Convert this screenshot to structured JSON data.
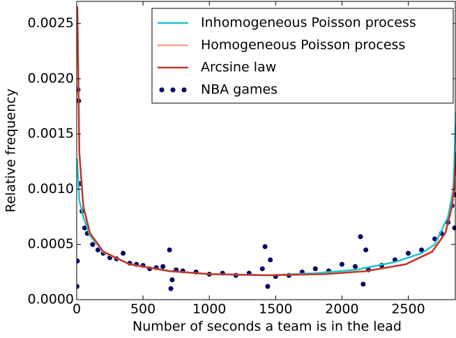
{
  "chart_data": {
    "type": "line",
    "xlabel": "Number of seconds a team is in the lead",
    "ylabel": "Relative frequency",
    "xlim": [
      0,
      2860
    ],
    "ylim": [
      0,
      0.0027
    ],
    "xticks": [
      0,
      500,
      1000,
      1500,
      2000,
      2500
    ],
    "yticks": [
      {
        "value": 0,
        "label": "0.0000"
      },
      {
        "value": 0.0005,
        "label": "0.0005"
      },
      {
        "value": 0.001,
        "label": "0.0010"
      },
      {
        "value": 0.0015,
        "label": "0.0015"
      },
      {
        "value": 0.002,
        "label": "0.0020"
      },
      {
        "value": 0.0025,
        "label": "0.0025"
      }
    ],
    "legend": "upper right",
    "series": [
      {
        "name": "Inhomogeneous Poisson process",
        "color": "#1fc3d0",
        "type": "line",
        "x": [
          2,
          20,
          50,
          100,
          200,
          400,
          700,
          1000,
          1440,
          1800,
          2100,
          2400,
          2600,
          2700,
          2800,
          2840,
          2860
        ],
        "values": [
          0.00128,
          0.0009,
          0.00075,
          0.00058,
          0.00043,
          0.00032,
          0.00026,
          0.00023,
          0.00022,
          0.00024,
          0.00027,
          0.00034,
          0.00042,
          0.0005,
          0.00075,
          0.001,
          0.0017
        ]
      },
      {
        "name": "Homogeneous Poisson process",
        "color": "#f4a582",
        "type": "line",
        "x": [
          5,
          20,
          50,
          100,
          200,
          400,
          700,
          1000,
          1440,
          1880,
          2180,
          2480,
          2680,
          2780,
          2830,
          2850,
          2860
        ],
        "values": [
          0.00262,
          0.00132,
          0.00084,
          0.0006,
          0.00043,
          0.00032,
          0.000258,
          0.000232,
          0.000221,
          0.000232,
          0.000258,
          0.00032,
          0.00043,
          0.0006,
          0.00084,
          0.00108,
          0.00132
        ]
      },
      {
        "name": "Arcsine law",
        "color": "#c0392b",
        "type": "line",
        "x": [
          5,
          20,
          50,
          100,
          200,
          400,
          700,
          1000,
          1440,
          1880,
          2180,
          2480,
          2680,
          2780,
          2830,
          2845,
          2855,
          2860
        ],
        "values": [
          0.002655,
          0.001331,
          0.000846,
          0.000604,
          0.000435,
          0.00032,
          0.000258,
          0.000232,
          0.000221,
          0.000232,
          0.000258,
          0.00032,
          0.000435,
          0.000604,
          0.000846,
          0.001009,
          0.001191,
          0.001331
        ]
      },
      {
        "name": "NBA games",
        "color": "#00008b",
        "type": "scatter",
        "x": [
          2,
          5,
          10,
          15,
          25,
          40,
          60,
          80,
          120,
          160,
          200,
          250,
          300,
          350,
          400,
          450,
          500,
          550,
          600,
          650,
          700,
          710,
          720,
          750,
          800,
          900,
          1000,
          1100,
          1200,
          1300,
          1400,
          1420,
          1440,
          1460,
          1500,
          1600,
          1700,
          1800,
          1900,
          2000,
          2100,
          2140,
          2160,
          2180,
          2200,
          2300,
          2400,
          2500,
          2600,
          2700,
          2750,
          2800,
          2830,
          2850,
          2855
        ],
        "values": [
          0.00012,
          0.00035,
          0.0019,
          0.0018,
          0.00105,
          0.0008,
          0.00065,
          0.0006,
          0.0005,
          0.00045,
          0.00042,
          0.00038,
          0.00037,
          0.00042,
          0.00033,
          0.00032,
          0.00031,
          0.00028,
          0.00029,
          0.0003,
          0.00045,
          0.0001,
          0.00018,
          0.00027,
          0.00026,
          0.00025,
          0.00023,
          0.00024,
          0.00022,
          0.00024,
          0.00028,
          0.00048,
          0.00012,
          0.00036,
          0.00021,
          0.00022,
          0.00025,
          0.00028,
          0.00026,
          0.00032,
          0.0003,
          0.00057,
          0.00014,
          0.00045,
          0.00027,
          0.00031,
          0.00036,
          0.00042,
          0.00045,
          0.00055,
          0.0006,
          0.0007,
          0.00085,
          0.00065,
          0.00095
        ]
      }
    ]
  }
}
